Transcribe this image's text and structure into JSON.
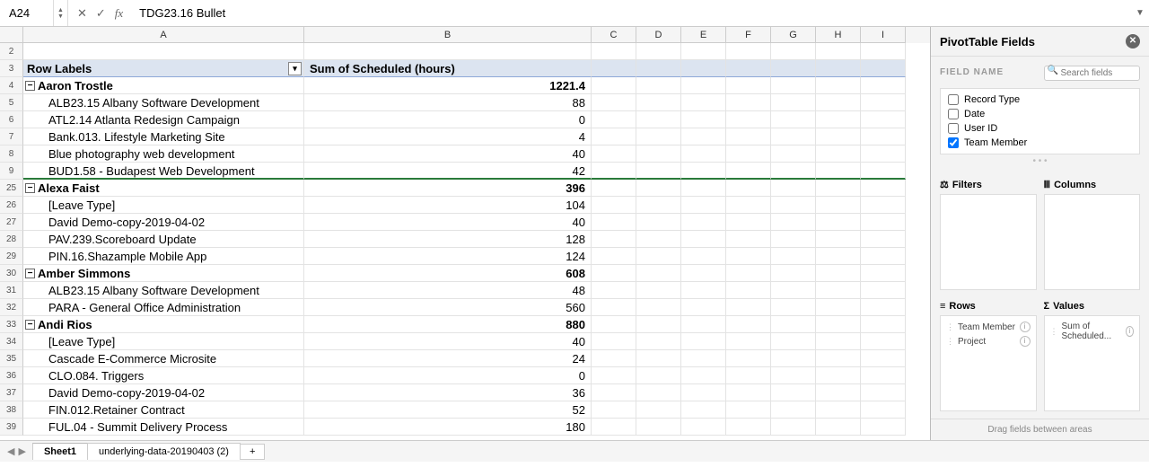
{
  "formula_bar": {
    "name_box": "A24",
    "formula": "TDG23.16 Bullet"
  },
  "columns_visible": [
    "A",
    "B",
    "C",
    "D",
    "E",
    "F",
    "G",
    "H",
    "I"
  ],
  "narrow_col_width": 50,
  "header_row": {
    "row_num": "3",
    "colA": "Row Labels",
    "colB": "Sum of Scheduled (hours)"
  },
  "first_blank_row": "2",
  "rows": [
    {
      "n": "4",
      "type": "group",
      "a": "Aaron Trostle",
      "b": "1221.4"
    },
    {
      "n": "5",
      "type": "item",
      "a": "ALB23.15 Albany Software Development",
      "b": "88"
    },
    {
      "n": "6",
      "type": "item",
      "a": "ATL2.14 Atlanta Redesign Campaign",
      "b": "0"
    },
    {
      "n": "7",
      "type": "item",
      "a": "Bank.013. Lifestyle Marketing Site",
      "b": "4"
    },
    {
      "n": "8",
      "type": "item",
      "a": "Blue photography web development",
      "b": "40"
    },
    {
      "n": "9",
      "type": "item",
      "a": "BUD1.58 - Budapest Web Development",
      "b": "42",
      "green": true
    },
    {
      "n": "25",
      "type": "group",
      "a": "Alexa Faist",
      "b": "396"
    },
    {
      "n": "26",
      "type": "item",
      "a": "[Leave Type]",
      "b": "104"
    },
    {
      "n": "27",
      "type": "item",
      "a": "David Demo-copy-2019-04-02",
      "b": "40"
    },
    {
      "n": "28",
      "type": "item",
      "a": "PAV.239.Scoreboard Update",
      "b": "128"
    },
    {
      "n": "29",
      "type": "item",
      "a": "PIN.16.Shazample Mobile App",
      "b": "124"
    },
    {
      "n": "30",
      "type": "group",
      "a": "Amber Simmons",
      "b": "608"
    },
    {
      "n": "31",
      "type": "item",
      "a": "ALB23.15 Albany Software Development",
      "b": "48"
    },
    {
      "n": "32",
      "type": "item",
      "a": "PARA - General Office Administration",
      "b": "560"
    },
    {
      "n": "33",
      "type": "group",
      "a": "Andi  Rios",
      "b": "880"
    },
    {
      "n": "34",
      "type": "item",
      "a": "[Leave Type]",
      "b": "40"
    },
    {
      "n": "35",
      "type": "item",
      "a": "Cascade E-Commerce Microsite",
      "b": "24"
    },
    {
      "n": "36",
      "type": "item",
      "a": "CLO.084. Triggers",
      "b": "0"
    },
    {
      "n": "37",
      "type": "item",
      "a": "David Demo-copy-2019-04-02",
      "b": "36"
    },
    {
      "n": "38",
      "type": "item",
      "a": "FIN.012.Retainer Contract",
      "b": "52"
    },
    {
      "n": "39",
      "type": "item",
      "a": "FUL.04 - Summit Delivery Process",
      "b": "180"
    }
  ],
  "sheet_tabs": {
    "active": "Sheet1",
    "second": "underlying-data-20190403 (2)"
  },
  "panel": {
    "title": "PivotTable Fields",
    "field_name_label": "FIELD NAME",
    "search_placeholder": "Search fields",
    "fields": [
      {
        "label": "Record Type",
        "checked": false
      },
      {
        "label": "Date",
        "checked": false
      },
      {
        "label": "User ID",
        "checked": false
      },
      {
        "label": "Team Member",
        "checked": true
      }
    ],
    "areas": {
      "filters": "Filters",
      "columns": "Columns",
      "rows": "Rows",
      "values": "Values"
    },
    "row_items": [
      {
        "label": "Team Member"
      },
      {
        "label": "Project"
      }
    ],
    "value_items": [
      {
        "label": "Sum of Scheduled..."
      }
    ],
    "footer": "Drag fields between areas"
  }
}
